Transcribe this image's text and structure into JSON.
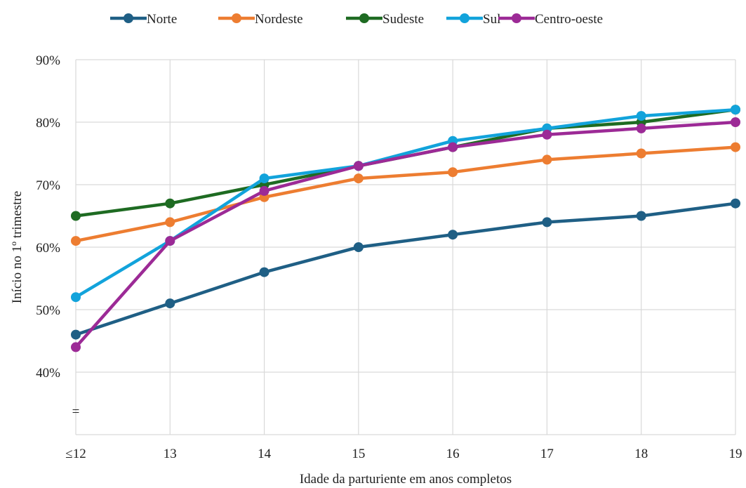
{
  "chart_data": {
    "type": "line",
    "categories": [
      "≤12",
      "13",
      "14",
      "15",
      "16",
      "17",
      "18",
      "19"
    ],
    "series": [
      {
        "name": "Norte",
        "color": "#1f5f85",
        "values": [
          46,
          51,
          56,
          60,
          62,
          64,
          65,
          67
        ]
      },
      {
        "name": "Nordeste",
        "color": "#ed7d31",
        "values": [
          61,
          64,
          68,
          71,
          72,
          74,
          75,
          76
        ]
      },
      {
        "name": "Sudeste",
        "color": "#1e6b22",
        "values": [
          65,
          67,
          70,
          73,
          76,
          79,
          80,
          82
        ]
      },
      {
        "name": "Sul",
        "color": "#12a3db",
        "values": [
          52,
          61,
          71,
          73,
          77,
          79,
          81,
          82
        ]
      },
      {
        "name": "Centro-oeste",
        "color": "#9c2a96",
        "values": [
          44,
          61,
          69,
          73,
          76,
          78,
          79,
          80
        ]
      }
    ],
    "xlabel": "Idade da parturiente em anos completos",
    "ylabel": "Início no 1º trimestre",
    "ylim": [
      30,
      90
    ],
    "yticks": [
      "",
      "40%",
      "50%",
      "60%",
      "70%",
      "80%",
      "90%"
    ],
    "axis_break_mark": "=",
    "grid": true,
    "legend": "top"
  }
}
